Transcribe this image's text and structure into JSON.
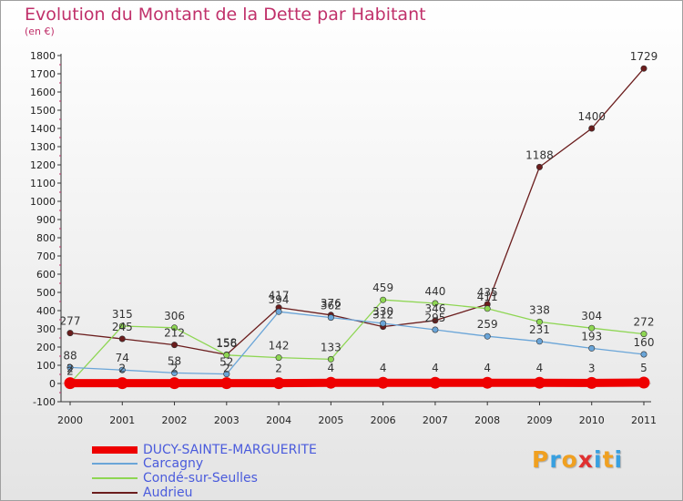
{
  "title": "Evolution du Montant de la Dette par Habitant",
  "subtitle": "(en €)",
  "logo": {
    "letters": [
      "P",
      "r",
      "o",
      "x",
      "i",
      "t",
      "i"
    ],
    "colors": [
      "#f0a020",
      "#38a0e0",
      "#f0a020",
      "#e03030",
      "#38a0e0",
      "#f0a020",
      "#38a0e0"
    ]
  },
  "chart_data": {
    "type": "line",
    "categories": [
      "2000",
      "2001",
      "2002",
      "2003",
      "2004",
      "2005",
      "2006",
      "2007",
      "2008",
      "2009",
      "2010",
      "2011"
    ],
    "ylim": [
      -100,
      1800
    ],
    "yticks": [
      "-100",
      "0",
      "100",
      "200",
      "300",
      "400",
      "500",
      "600",
      "700",
      "800",
      "900",
      "1000",
      "1100",
      "1200",
      "1300",
      "1400",
      "1500",
      "1600",
      "1700",
      "1800"
    ],
    "grid": false,
    "legend_position": "bottom-left",
    "series": [
      {
        "name": "DUCY-SAINTE-MARGUERITE",
        "color": "#ee0000",
        "values": [
          2,
          2,
          2,
          2,
          2,
          4,
          4,
          4,
          4,
          4,
          3,
          5
        ],
        "labels": [
          "2",
          "2",
          "2",
          "2",
          "2",
          "4",
          "4",
          "4",
          "4",
          "4",
          "3",
          "5"
        ]
      },
      {
        "name": "Carcagny",
        "color": "#6aa5d8",
        "values": [
          88,
          74,
          58,
          52,
          394,
          362,
          330,
          295,
          259,
          231,
          193,
          160
        ],
        "labels": [
          "88",
          "74",
          "58",
          "52",
          "394",
          "362",
          "330",
          "295",
          "259",
          "231",
          "193",
          "160"
        ]
      },
      {
        "name": "Condé-sur-Seulles",
        "color": "#8ed653",
        "values": [
          2,
          315,
          306,
          156,
          142,
          133,
          459,
          440,
          411,
          338,
          304,
          272
        ],
        "labels": [
          "2",
          "315",
          "306",
          "156",
          "142",
          "133",
          "459",
          "440",
          "411",
          "338",
          "304",
          "272"
        ]
      },
      {
        "name": "Audrieu",
        "color": "#6b1d1d",
        "values": [
          277,
          245,
          212,
          158,
          417,
          376,
          312,
          346,
          435,
          1188,
          1400,
          1729
        ],
        "labels": [
          "277",
          "245",
          "212",
          "158",
          "417",
          "376",
          "312",
          "346",
          "435",
          "1188",
          "1400",
          "1729"
        ]
      }
    ]
  }
}
